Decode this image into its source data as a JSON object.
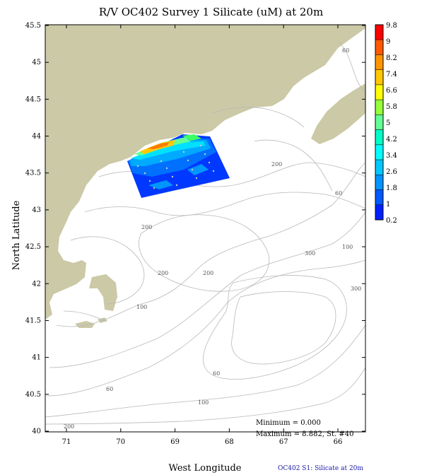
{
  "title": "R/V OC402 Survey 1 Silicate (uM) at 20m",
  "x_axis": {
    "title": "West Longitude",
    "ticks": [
      "71",
      "70",
      "69",
      "68",
      "67",
      "66"
    ]
  },
  "y_axis": {
    "title": "North Latitude",
    "ticks": [
      "45.5",
      "45",
      "44.5",
      "44",
      "43.5",
      "43",
      "42.5",
      "42",
      "41.5",
      "41",
      "40.5",
      "40"
    ]
  },
  "colorbar": {
    "labels": [
      "9.8",
      "9",
      "8.2",
      "7.4",
      "6.6",
      "5.8",
      "5",
      "4.2",
      "3.4",
      "2.6",
      "1.8",
      "1",
      "0.2"
    ],
    "colors": [
      "#ff0000",
      "#ff5a00",
      "#ff9600",
      "#ffc800",
      "#ffff00",
      "#96ff3c",
      "#64ff96",
      "#00ffc8",
      "#00ffff",
      "#00c8ff",
      "#0096ff",
      "#005aff",
      "#0020ff"
    ]
  },
  "contour_labels": [
    "60",
    "200",
    "200",
    "60",
    "200",
    "300",
    "100",
    "200",
    "300",
    "100",
    "60",
    "60",
    "100",
    "200"
  ],
  "stats": {
    "minimum": "Minimum = 0.000",
    "maximum": "Maximum = 8.882, St. #40"
  },
  "caption": "OC402  S1: Silicate at 20m",
  "colors": {
    "land": "#cbc9a6",
    "contour": "#b8b8b8",
    "station": "#c8c8c8"
  }
}
